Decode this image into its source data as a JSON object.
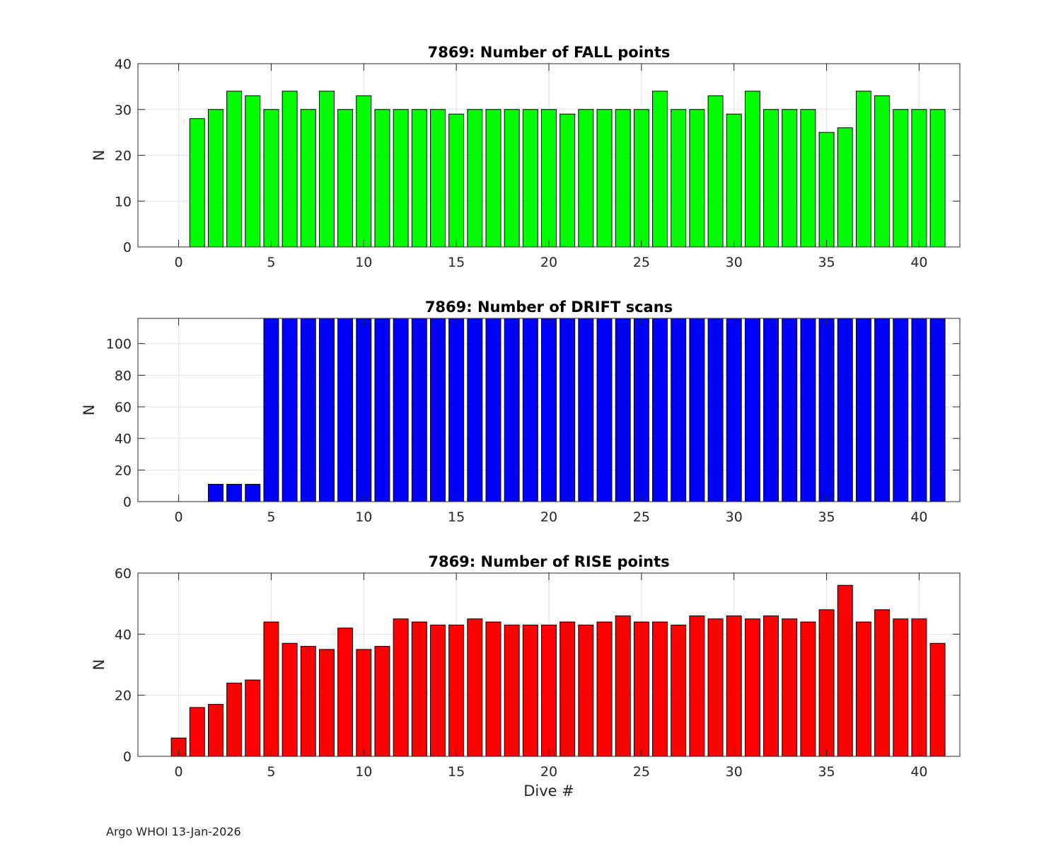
{
  "footer": "Argo WHOI 13-Jan-2026",
  "chart_data": [
    {
      "type": "bar",
      "title": "7869: Number of FALL points",
      "xlabel": "",
      "ylabel": "N",
      "color": "#00ff00",
      "xlim": [
        -2.2,
        42.2
      ],
      "ylim": [
        0,
        40
      ],
      "yticks": [
        0,
        10,
        20,
        30,
        40
      ],
      "xticks": [
        0,
        5,
        10,
        15,
        20,
        25,
        30,
        35,
        40
      ],
      "grid": true,
      "x": [
        1,
        2,
        3,
        4,
        5,
        6,
        7,
        8,
        9,
        10,
        11,
        12,
        13,
        14,
        15,
        16,
        17,
        18,
        19,
        20,
        21,
        22,
        23,
        24,
        25,
        26,
        27,
        28,
        29,
        30,
        31,
        32,
        33,
        34,
        35,
        36,
        37,
        38,
        39,
        40,
        41
      ],
      "values": [
        28,
        30,
        34,
        33,
        30,
        34,
        30,
        34,
        30,
        33,
        30,
        30,
        30,
        30,
        29,
        30,
        30,
        30,
        30,
        30,
        29,
        30,
        30,
        30,
        30,
        34,
        30,
        30,
        33,
        29,
        34,
        30,
        30,
        30,
        25,
        26,
        34,
        33,
        30,
        30,
        30
      ]
    },
    {
      "type": "bar",
      "title": "7869: Number of DRIFT scans",
      "xlabel": "",
      "ylabel": "N",
      "color": "#0000ff",
      "xlim": [
        -2.2,
        42.2
      ],
      "ylim": [
        0,
        116
      ],
      "yticks": [
        0,
        20,
        40,
        60,
        80,
        100
      ],
      "xticks": [
        0,
        5,
        10,
        15,
        20,
        25,
        30,
        35,
        40
      ],
      "grid": true,
      "x": [
        -1,
        0,
        1,
        2,
        3,
        4,
        5,
        6,
        7,
        8,
        9,
        10,
        11,
        12,
        13,
        14,
        15,
        16,
        17,
        18,
        19,
        20,
        21,
        22,
        23,
        24,
        25,
        26,
        27,
        28,
        29,
        30,
        31,
        32,
        33,
        34,
        35,
        36,
        37,
        38,
        39,
        40,
        41
      ],
      "values": [
        0,
        0,
        0,
        11,
        11,
        11,
        116,
        116,
        116,
        116,
        116,
        116,
        116,
        116,
        116,
        116,
        116,
        116,
        116,
        116,
        116,
        116,
        116,
        116,
        116,
        116,
        116,
        116,
        116,
        116,
        116,
        116,
        116,
        116,
        116,
        116,
        116,
        116,
        116,
        116,
        116,
        116,
        116
      ]
    },
    {
      "type": "bar",
      "title": "7869: Number of RISE points",
      "xlabel": "Dive #",
      "ylabel": "N",
      "color": "#ff0000",
      "xlim": [
        -2.2,
        42.2
      ],
      "ylim": [
        0,
        60
      ],
      "yticks": [
        0,
        20,
        40,
        60
      ],
      "xticks": [
        0,
        5,
        10,
        15,
        20,
        25,
        30,
        35,
        40
      ],
      "grid": true,
      "x": [
        0,
        1,
        2,
        3,
        4,
        5,
        6,
        7,
        8,
        9,
        10,
        11,
        12,
        13,
        14,
        15,
        16,
        17,
        18,
        19,
        20,
        21,
        22,
        23,
        24,
        25,
        26,
        27,
        28,
        29,
        30,
        31,
        32,
        33,
        34,
        35,
        36,
        37,
        38,
        39,
        40,
        41
      ],
      "values": [
        6,
        16,
        17,
        24,
        25,
        44,
        37,
        36,
        35,
        42,
        35,
        36,
        45,
        44,
        43,
        43,
        45,
        44,
        43,
        43,
        43,
        44,
        43,
        44,
        46,
        44,
        44,
        43,
        46,
        45,
        46,
        45,
        46,
        45,
        44,
        48,
        56,
        44,
        48,
        45,
        45,
        37
      ]
    }
  ]
}
